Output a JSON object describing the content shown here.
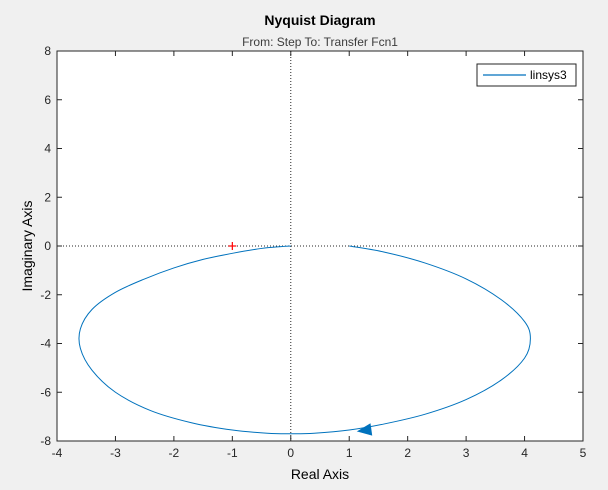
{
  "chart_data": {
    "type": "line",
    "title": "Nyquist Diagram",
    "subtitle": "From: Step  To: Transfer Fcn1",
    "xlabel": "Real Axis",
    "ylabel": "Imaginary Axis",
    "xlim": [
      -4,
      5
    ],
    "ylim": [
      -8,
      8
    ],
    "xticks": [
      -4,
      -3,
      -2,
      -1,
      0,
      1,
      2,
      3,
      4,
      5
    ],
    "yticks": [
      -8,
      -6,
      -4,
      -2,
      0,
      2,
      4,
      6,
      8
    ],
    "grid": false,
    "legend_position": "top-right",
    "critical_point": [
      -1,
      0
    ],
    "critical_point_color": "#ff0000",
    "series": [
      {
        "name": "linsys3",
        "color": "#0072bd",
        "x": [
          1.0,
          1.6,
          2.3,
          3.0,
          3.6,
          4.0,
          4.1,
          4.0,
          3.6,
          3.0,
          2.3,
          1.6,
          1.0,
          0.4,
          0.0,
          -0.4,
          -1.0,
          -1.7,
          -2.4,
          -3.0,
          -3.4,
          -3.6,
          -3.6,
          -3.4,
          -3.0,
          -2.5,
          -2.0,
          -1.5,
          -1.0,
          -0.5,
          -0.2,
          0.0
        ],
        "y": [
          0.0,
          -0.25,
          -0.7,
          -1.35,
          -2.2,
          -3.1,
          -3.8,
          -4.6,
          -5.5,
          -6.3,
          -6.9,
          -7.3,
          -7.55,
          -7.68,
          -7.7,
          -7.68,
          -7.55,
          -7.25,
          -6.75,
          -6.0,
          -5.1,
          -4.2,
          -3.4,
          -2.6,
          -1.9,
          -1.35,
          -0.9,
          -0.55,
          -0.3,
          -0.1,
          -0.03,
          0.0
        ]
      }
    ],
    "arrow": {
      "at": [
        1.15,
        -7.6
      ],
      "toward": [
        1.45,
        -7.5
      ]
    }
  }
}
